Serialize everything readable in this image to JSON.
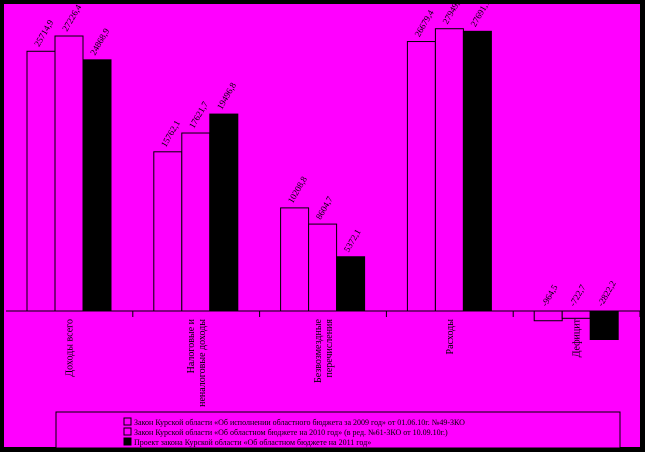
{
  "colors": {
    "background": "#ff00ff",
    "frame": "#000000",
    "series": [
      "#ff00ff",
      "#ff00ff",
      "#000000"
    ],
    "axis": "#000000"
  },
  "chart_data": {
    "type": "bar",
    "categories": [
      "Доходы всего",
      "Налоговые и неналоговые доходы",
      "Безвозмездные перечисления",
      "Расходы",
      "Дефицит"
    ],
    "series": [
      {
        "name": "Закон Курской области «Об исполнении областного бюджета за 2009 год» от 01.06.10г. №49-ЗКО",
        "values": [
          25714.9,
          15762.1,
          10208.8,
          26679.4,
          -964.5
        ],
        "labels": [
          "25714,9",
          "15762,1",
          "10208,8",
          "26679,4",
          "-964,5"
        ]
      },
      {
        "name": "Закон Курской области «Об областном бюджете на 2010 год» (в ред. №61-ЗКО от 10.09.10г.)",
        "values": [
          27226.4,
          17621.7,
          8604.7,
          27949.1,
          -722.7
        ],
        "labels": [
          "27226,4",
          "17621,7",
          "8604,7",
          "27949,1",
          "-722,7"
        ]
      },
      {
        "name": "Проект закона Курской области «Об областном бюджете на 2011 год»",
        "values": [
          24868.9,
          19496.8,
          5372.1,
          27691.1,
          -2822.2
        ],
        "labels": [
          "24868,9",
          "19496,8",
          "5372,1",
          "27691,1",
          "-2822,2"
        ]
      }
    ],
    "ylim": [
      -3000,
      29000
    ],
    "xlabel": "",
    "ylabel": "",
    "grid": false,
    "legend": "bottom"
  }
}
